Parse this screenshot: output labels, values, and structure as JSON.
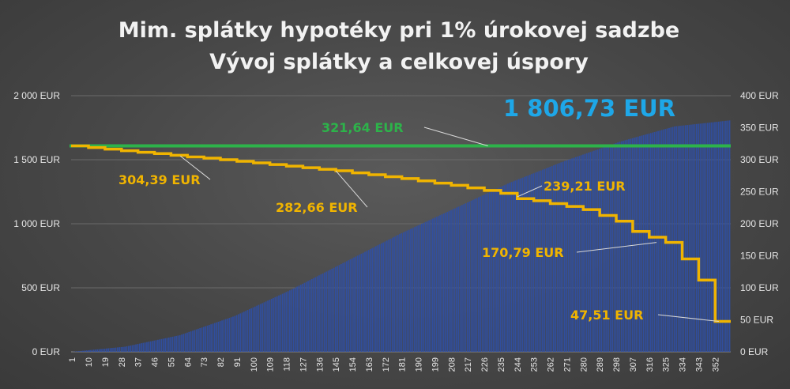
{
  "chart_data": {
    "type": "bar",
    "title": "Mim. splátky hypotéky pri 1% úrokovej sadzbe",
    "subtitle": "Vývoj splátky a celkovej úspory",
    "x_range": [
      1,
      360
    ],
    "x_tick_labels": [
      "1",
      "10",
      "19",
      "28",
      "37",
      "46",
      "55",
      "64",
      "73",
      "82",
      "91",
      "100",
      "109",
      "118",
      "127",
      "136",
      "145",
      "154",
      "163",
      "172",
      "181",
      "190",
      "199",
      "208",
      "217",
      "226",
      "235",
      "244",
      "253",
      "262",
      "271",
      "280",
      "289",
      "298",
      "307",
      "316",
      "325",
      "334",
      "343",
      "352"
    ],
    "left_axis": {
      "ylim": [
        0,
        2000
      ],
      "tick_labels": [
        "0 EUR",
        "500 EUR",
        "1 000 EUR",
        "1 500 EUR",
        "2 000 EUR"
      ]
    },
    "right_axis": {
      "ylim": [
        0,
        400
      ],
      "tick_labels": [
        "0 EUR",
        "50 EUR",
        "100 EUR",
        "150 EUR",
        "200 EUR",
        "250 EUR",
        "300 EUR",
        "350 EUR",
        "400 EUR"
      ]
    },
    "grid": true,
    "series": [
      {
        "kind": "bar",
        "axis": "left",
        "color": "#2f4fa3",
        "points": [
          [
            1,
            0
          ],
          [
            30,
            40
          ],
          [
            60,
            130
          ],
          [
            90,
            280
          ],
          [
            120,
            480
          ],
          [
            150,
            700
          ],
          [
            180,
            920
          ],
          [
            210,
            1120
          ],
          [
            240,
            1320
          ],
          [
            270,
            1490
          ],
          [
            300,
            1640
          ],
          [
            330,
            1760
          ],
          [
            360,
            1806.73
          ]
        ]
      },
      {
        "kind": "line",
        "axis": "right",
        "color": "#2db34a",
        "points": [
          [
            1,
            321.64
          ],
          [
            360,
            321.64
          ]
        ]
      },
      {
        "kind": "step",
        "axis": "right",
        "color": "#f0b400",
        "points": [
          [
            1,
            321.64
          ],
          [
            10,
            319
          ],
          [
            19,
            316.5
          ],
          [
            28,
            314
          ],
          [
            37,
            311.5
          ],
          [
            46,
            309.5
          ],
          [
            55,
            307
          ],
          [
            64,
            304.39
          ],
          [
            73,
            302.5
          ],
          [
            82,
            300
          ],
          [
            91,
            297.5
          ],
          [
            100,
            295
          ],
          [
            109,
            292.5
          ],
          [
            118,
            290
          ],
          [
            127,
            287.5
          ],
          [
            136,
            285
          ],
          [
            145,
            282.66
          ],
          [
            154,
            279.5
          ],
          [
            163,
            276.5
          ],
          [
            172,
            273.5
          ],
          [
            181,
            270.5
          ],
          [
            190,
            267
          ],
          [
            199,
            263.5
          ],
          [
            208,
            260
          ],
          [
            217,
            256
          ],
          [
            226,
            252
          ],
          [
            235,
            247.5
          ],
          [
            244,
            239.21
          ],
          [
            253,
            236
          ],
          [
            262,
            231.5
          ],
          [
            271,
            227
          ],
          [
            280,
            222
          ],
          [
            289,
            213
          ],
          [
            298,
            204
          ],
          [
            307,
            188
          ],
          [
            316,
            179
          ],
          [
            325,
            170.79
          ],
          [
            334,
            145
          ],
          [
            343,
            112
          ],
          [
            352,
            47.51
          ],
          [
            360,
            47.51
          ]
        ]
      }
    ],
    "annotations": [
      {
        "text": "1 806,73 EUR",
        "style": "big"
      },
      {
        "text": "321,64 EUR",
        "color": "#2db34a",
        "target": [
          228,
          321.64
        ]
      },
      {
        "text": "304,39 EUR",
        "color": "#f0b400",
        "target": [
          60,
          306
        ]
      },
      {
        "text": "282,66 EUR",
        "color": "#f0b400",
        "target": [
          145,
          282.66
        ]
      },
      {
        "text": "239,21 EUR",
        "color": "#f0b400",
        "target": [
          244,
          242
        ]
      },
      {
        "text": "170,79 EUR",
        "color": "#f0b400",
        "target": [
          320,
          170.79
        ]
      },
      {
        "text": "47,51 EUR",
        "color": "#f0b400",
        "target": [
          354,
          47.51
        ]
      }
    ]
  }
}
